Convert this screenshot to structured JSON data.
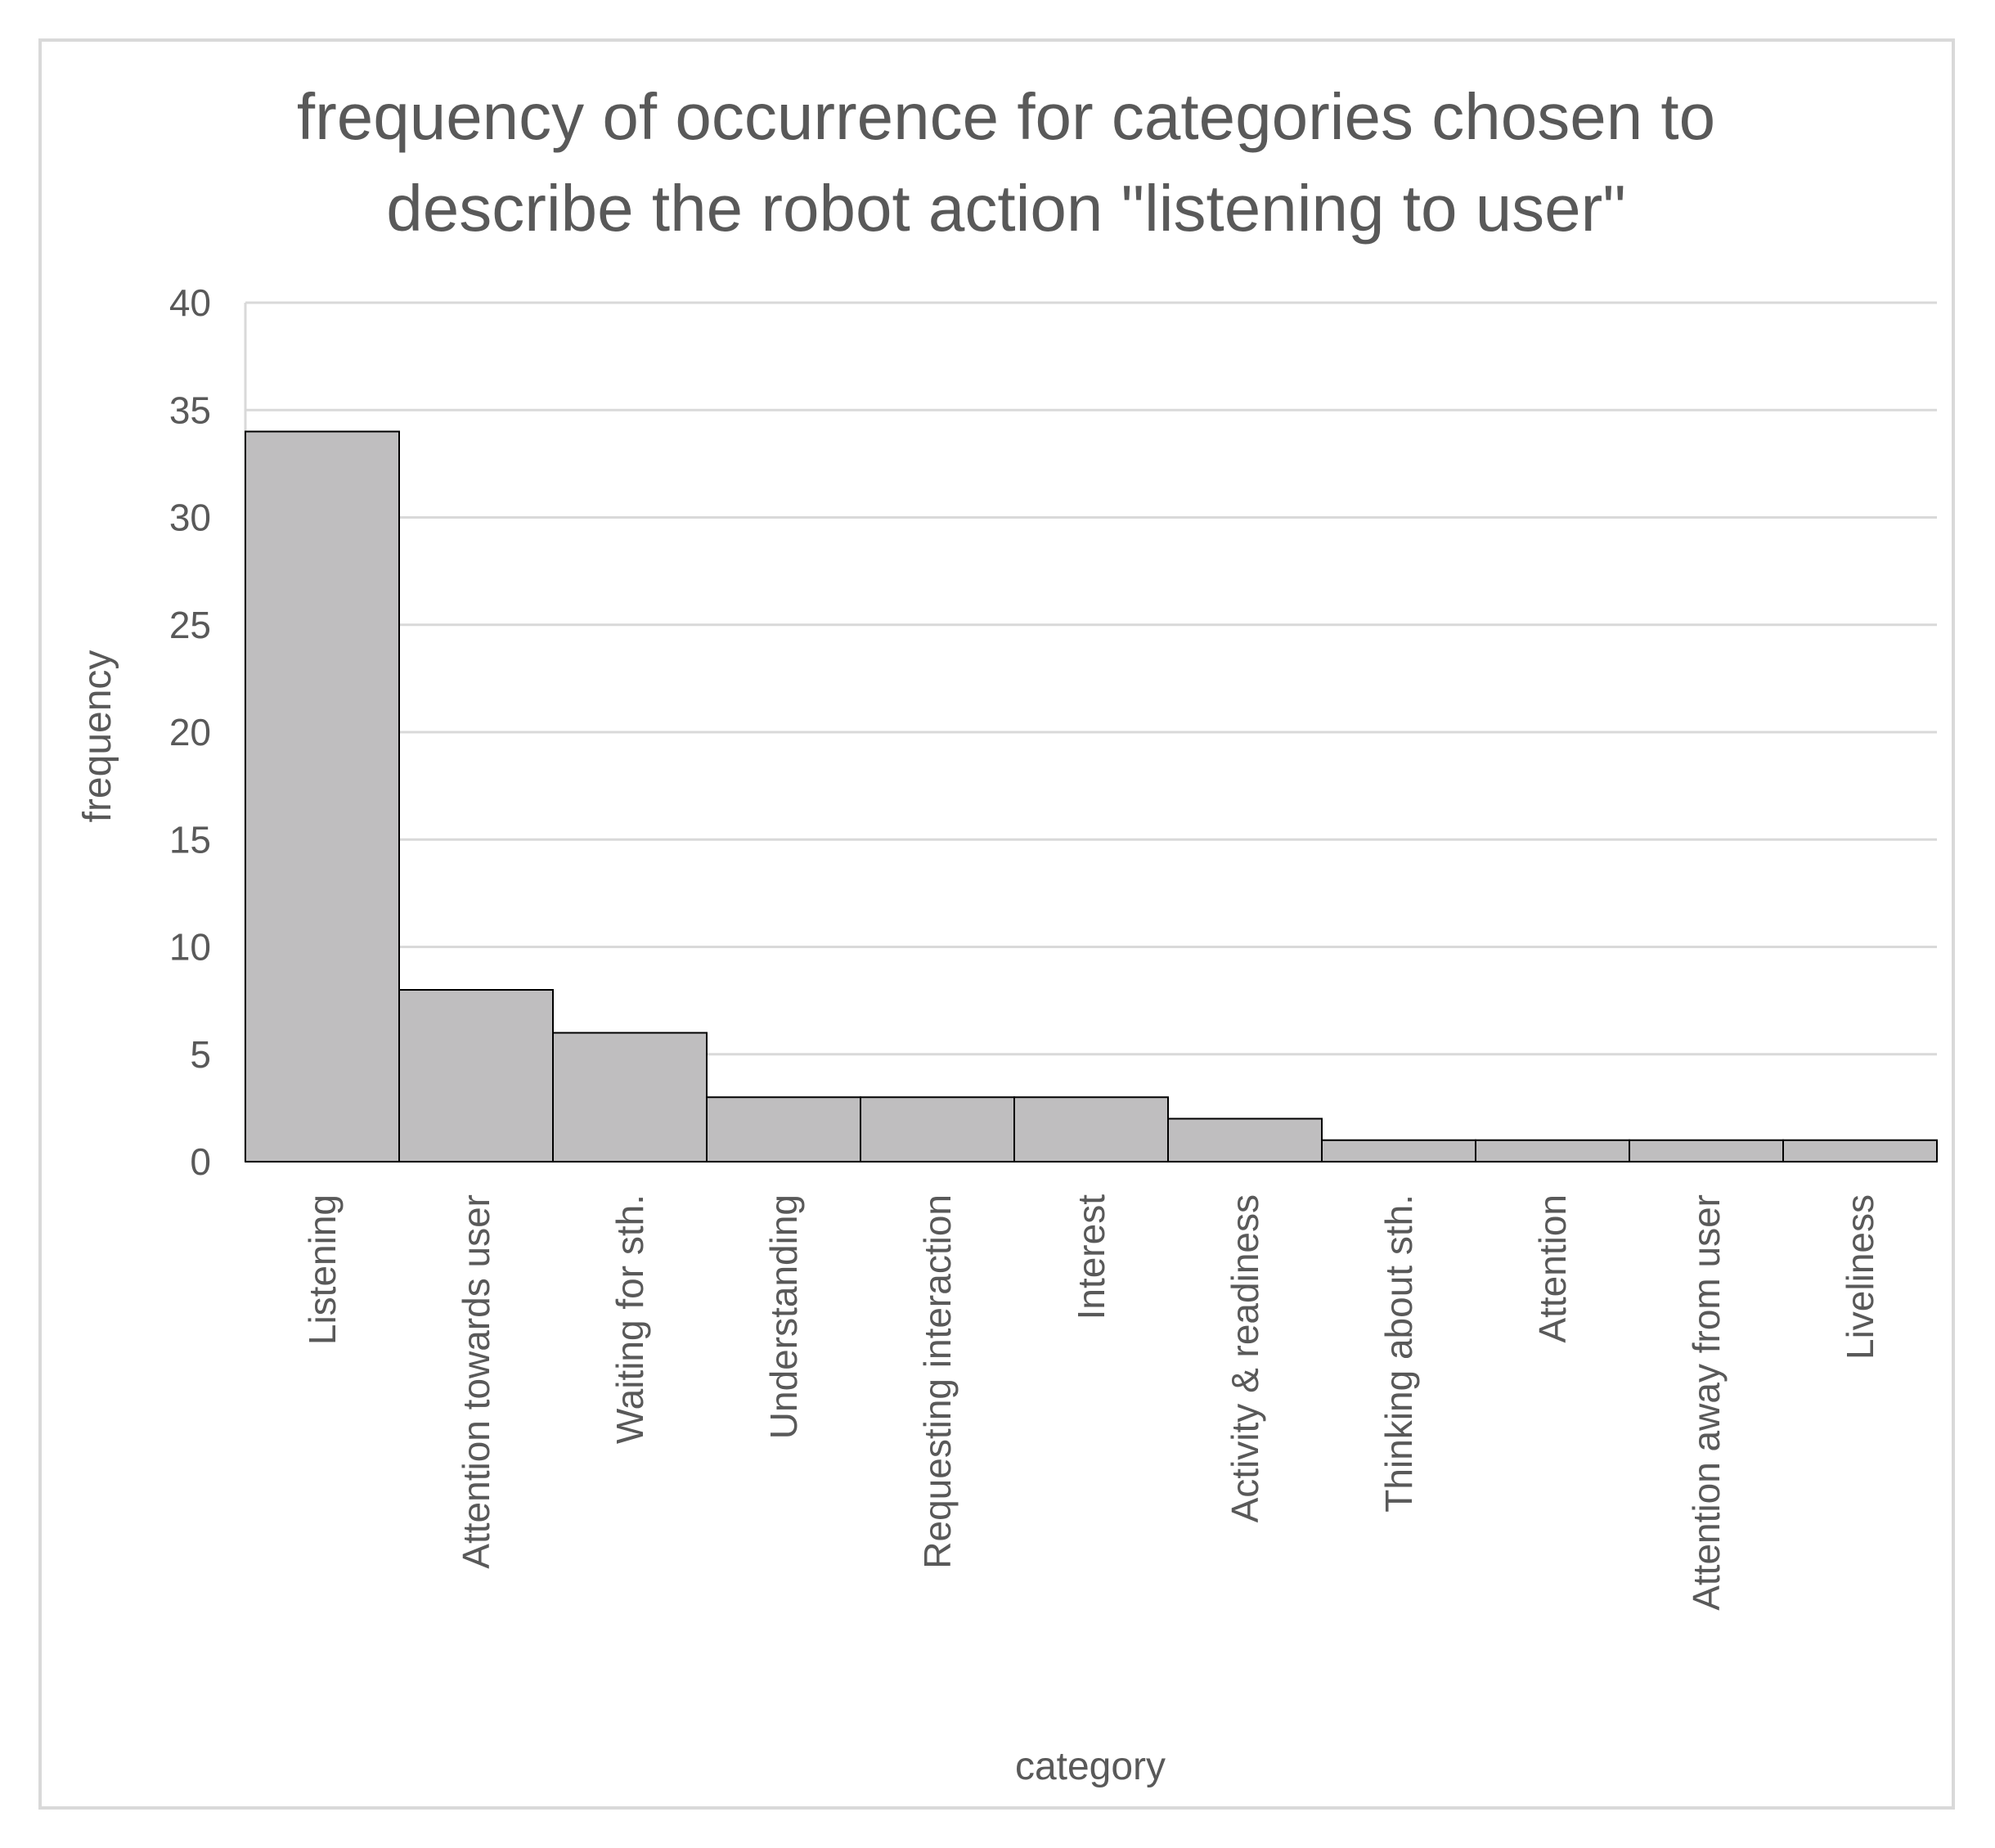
{
  "chart_data": {
    "type": "bar",
    "title_lines": [
      "frequency of occurrence for categories chosen to",
      "describe the robot action \"listening to user\""
    ],
    "xlabel": "category",
    "ylabel": "frequency",
    "ylim": [
      0,
      40
    ],
    "yticks": [
      0,
      5,
      10,
      15,
      20,
      25,
      30,
      35,
      40
    ],
    "grid": true,
    "legend": "none",
    "categories": [
      "Listening",
      "Attention towards user",
      "Waiting for sth.",
      "Understanding",
      "Requesting interaction",
      "Interest",
      "Activity & readiness",
      "Thinking about sth.",
      "Attention",
      "Attention away from user",
      "Liveliness"
    ],
    "values": [
      34,
      8,
      6,
      3,
      3,
      3,
      2,
      1,
      1,
      1,
      1
    ],
    "colors": {
      "bar_fill": "#bfbebf",
      "bar_stroke": "#000000",
      "grid": "#d9d9d9",
      "text": "#595959"
    }
  }
}
